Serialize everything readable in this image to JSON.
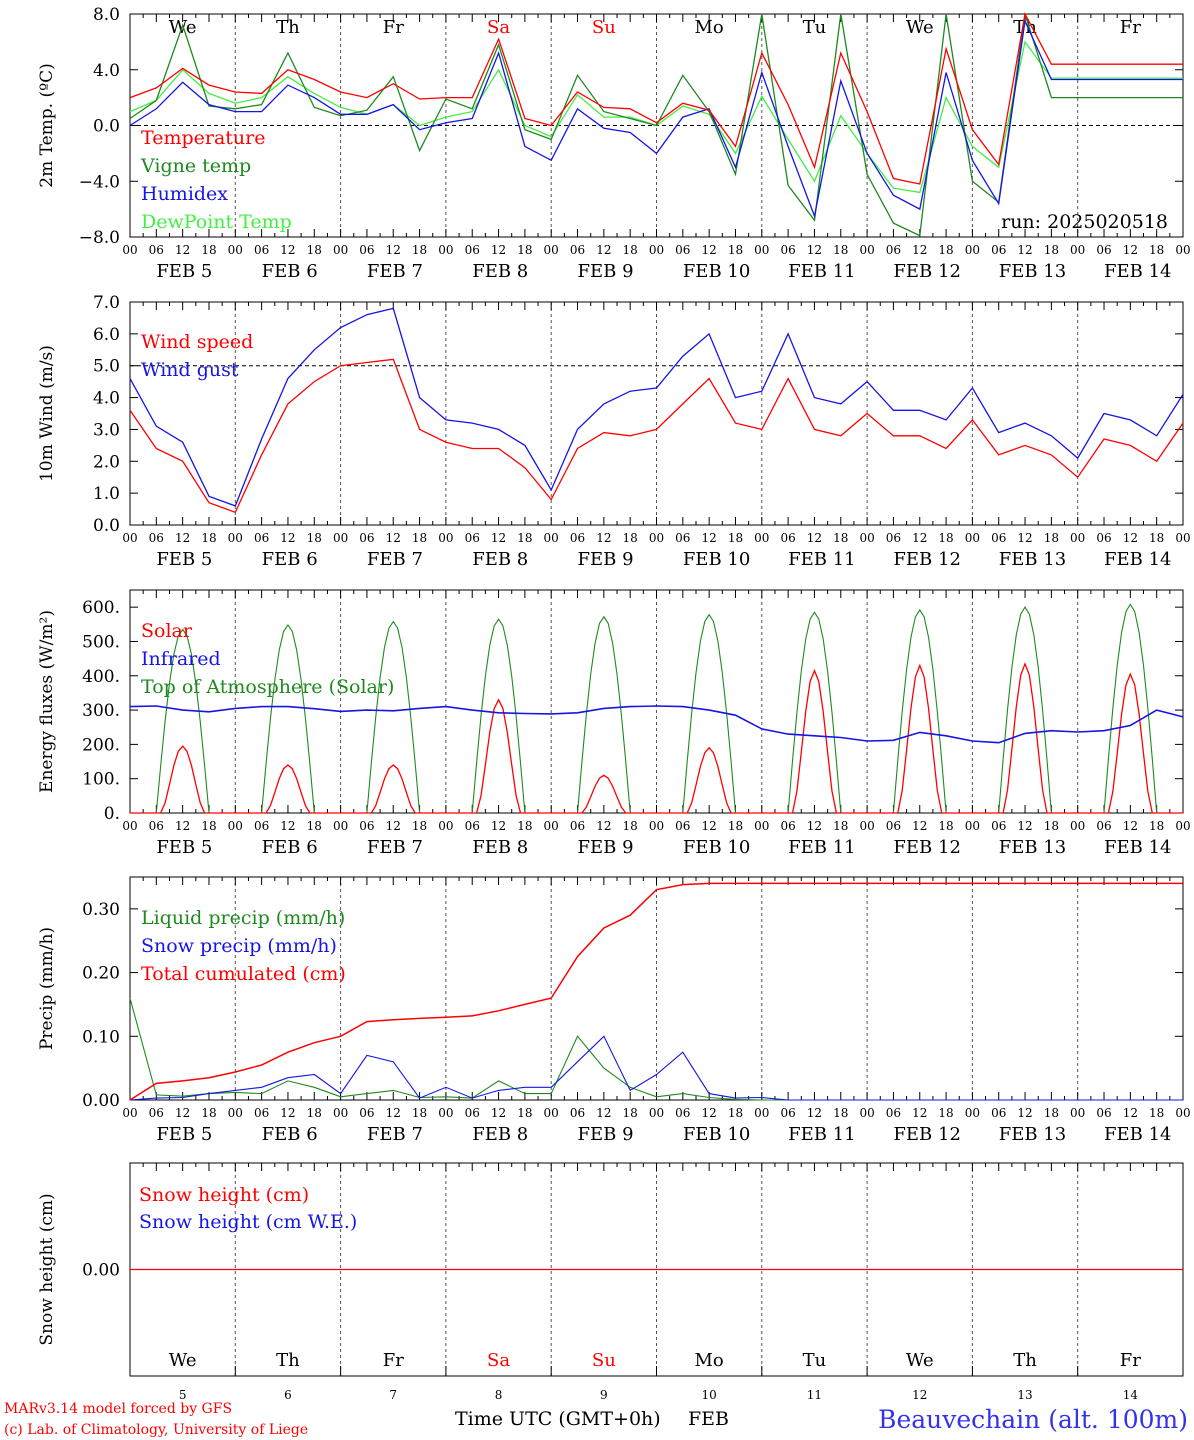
{
  "colors": {
    "red": "#ff0000",
    "green": "#1e8a1e",
    "blue": "#1515e6",
    "lightgreen": "#44ee44",
    "axis": "#000000"
  },
  "days": [
    "We",
    "Th",
    "Fr",
    "Sa",
    "Su",
    "Mo",
    "Tu",
    "We",
    "Th",
    "Fr"
  ],
  "weekend_days": [
    "Sa",
    "Su"
  ],
  "dates": [
    "FEB  5",
    "FEB  6",
    "FEB  7",
    "FEB  8",
    "FEB  9",
    "FEB 10",
    "FEB 11",
    "FEB 12",
    "FEB 13",
    "FEB 14"
  ],
  "hour_ticks": [
    "00",
    "06",
    "12",
    "18"
  ],
  "bottom_dates": [
    "5",
    "6",
    "7",
    "8",
    "9",
    "10",
    "11",
    "12",
    "13",
    "14"
  ],
  "footer": {
    "model": "MARv3.14 model forced by GFS",
    "copyright": "(c) Lab. of Climatology, University of Liege",
    "time_label": "Time UTC (GMT+0h)",
    "month": "FEB",
    "station": "Beauvechain (alt. 100m)"
  },
  "chart_data": [
    {
      "type": "line",
      "ylabel": "2m Temp. (ºC)",
      "ylim": [
        -8,
        8
      ],
      "ytick_labels": [
        "8.0",
        "4.0",
        "0.0",
        "−4.0",
        "−8.0"
      ],
      "ytick_values": [
        8,
        4,
        0,
        -4,
        -8
      ],
      "ref_line": 0,
      "run_label": "run: 2025020518",
      "x_hours": [
        0,
        6,
        12,
        18,
        24,
        30,
        36,
        42,
        48,
        54,
        60,
        66,
        72,
        78,
        84,
        90,
        96,
        102,
        108,
        114,
        120,
        126,
        132,
        138,
        144,
        150,
        156,
        162,
        168,
        174,
        180,
        186,
        192,
        198,
        204,
        210,
        216,
        222,
        228,
        234,
        240
      ],
      "series": [
        {
          "name": "Temperature",
          "color": "red",
          "values": [
            2.0,
            2.7,
            4.1,
            2.9,
            2.4,
            2.3,
            4.0,
            3.3,
            2.4,
            2.0,
            3.0,
            1.9,
            2.0,
            2.0,
            6.2,
            0.5,
            0.0,
            2.4,
            1.3,
            1.2,
            0.2,
            1.6,
            1.1,
            -1.5,
            5.2,
            1.5,
            -3.0,
            5.2,
            1.0,
            -3.8,
            -4.2,
            5.5,
            -0.3,
            -2.8,
            8.0,
            4.4,
            4.4,
            4.4,
            4.4,
            4.4,
            4.4
          ]
        },
        {
          "name": "Vigne temp",
          "color": "green",
          "values": [
            0.5,
            1.8,
            7.2,
            1.4,
            1.2,
            1.5,
            5.2,
            1.3,
            0.7,
            1.1,
            3.5,
            -1.8,
            1.9,
            1.2,
            5.8,
            -0.3,
            -1.0,
            3.6,
            1.0,
            0.5,
            0.0,
            3.6,
            1.0,
            -3.5,
            8.0,
            -4.3,
            -6.8,
            8.0,
            -3.5,
            -7.0,
            -7.9,
            8.0,
            -4.0,
            -5.5,
            8.0,
            2.0,
            2.0,
            2.0,
            2.0,
            2.0,
            2.0
          ]
        },
        {
          "name": "Humidex",
          "color": "blue",
          "values": [
            0.0,
            1.2,
            3.1,
            1.5,
            1.0,
            1.0,
            2.9,
            2.0,
            0.8,
            0.8,
            1.5,
            -0.3,
            0.2,
            0.5,
            5.2,
            -1.5,
            -2.5,
            1.2,
            -0.2,
            -0.5,
            -2.0,
            0.6,
            1.2,
            -3.0,
            3.8,
            -1.5,
            -6.5,
            3.2,
            -2.0,
            -5.0,
            -6.0,
            3.8,
            -2.5,
            -5.6,
            7.5,
            3.3,
            3.3,
            3.3,
            3.3,
            3.3,
            3.3
          ]
        },
        {
          "name": "DewPoint Temp",
          "color": "lightgreen",
          "values": [
            1.0,
            1.8,
            4.0,
            2.3,
            1.6,
            2.0,
            3.5,
            2.3,
            1.3,
            0.8,
            1.5,
            0.0,
            0.6,
            1.0,
            4.0,
            0.0,
            -0.8,
            2.2,
            0.6,
            0.6,
            0.0,
            1.4,
            0.8,
            -2.0,
            2.1,
            -1.0,
            -4.0,
            0.7,
            -2.0,
            -4.5,
            -4.8,
            2.0,
            -1.5,
            -3.0,
            6.0,
            3.4,
            3.4,
            3.4,
            3.4,
            3.4,
            3.4
          ]
        }
      ]
    },
    {
      "type": "line",
      "ylabel": "10m Wind (m/s)",
      "ylim": [
        0,
        7
      ],
      "ytick_labels": [
        "7.0",
        "6.0",
        "5.0",
        "4.0",
        "3.0",
        "2.0",
        "1.0",
        "0.0"
      ],
      "ytick_values": [
        7,
        6,
        5,
        4,
        3,
        2,
        1,
        0
      ],
      "ref_line": 5,
      "x_hours": [
        0,
        6,
        12,
        18,
        24,
        30,
        36,
        42,
        48,
        54,
        60,
        66,
        72,
        78,
        84,
        90,
        96,
        102,
        108,
        114,
        120,
        126,
        132,
        138,
        144,
        150,
        156,
        162,
        168,
        174,
        180,
        186,
        192,
        198,
        204,
        210,
        216,
        222,
        228,
        234,
        240
      ],
      "series": [
        {
          "name": "Wind speed",
          "color": "red",
          "values": [
            3.6,
            2.4,
            2.0,
            0.7,
            0.4,
            2.2,
            3.8,
            4.5,
            5.0,
            5.1,
            5.2,
            3.0,
            2.6,
            2.4,
            2.4,
            1.8,
            0.8,
            2.4,
            2.9,
            2.8,
            3.0,
            3.8,
            4.6,
            3.2,
            3.0,
            4.6,
            3.0,
            2.8,
            3.5,
            2.8,
            2.8,
            2.4,
            3.3,
            2.2,
            2.5,
            2.2,
            1.5,
            2.7,
            2.5,
            2.0,
            3.2
          ]
        },
        {
          "name": "Wind gust",
          "color": "blue",
          "values": [
            4.6,
            3.1,
            2.6,
            0.9,
            0.6,
            2.7,
            4.6,
            5.5,
            6.2,
            6.6,
            6.8,
            4.0,
            3.3,
            3.2,
            3.0,
            2.5,
            1.1,
            3.0,
            3.8,
            4.2,
            4.3,
            5.3,
            6.0,
            4.0,
            4.2,
            6.0,
            4.0,
            3.8,
            4.5,
            3.6,
            3.6,
            3.3,
            4.3,
            2.9,
            3.2,
            2.8,
            2.1,
            3.5,
            3.3,
            2.8,
            4.1
          ]
        }
      ]
    },
    {
      "type": "line",
      "ylabel": "Energy fluxes (W/m²)",
      "ylim": [
        0,
        650
      ],
      "ytick_labels": [
        "600.",
        "500.",
        "400.",
        "300.",
        "200.",
        "100.",
        "0."
      ],
      "ytick_values": [
        600,
        500,
        400,
        300,
        200,
        100,
        0
      ],
      "solar_peaks": [
        195,
        140,
        140,
        330,
        110,
        190,
        415,
        430,
        435,
        405
      ],
      "toa_peaks": [
        535,
        548,
        558,
        565,
        572,
        578,
        585,
        592,
        600,
        608
      ],
      "infrared": [
        310,
        312,
        300,
        295,
        305,
        310,
        310,
        304,
        296,
        300,
        298,
        305,
        310,
        300,
        292,
        290,
        289,
        292,
        305,
        310,
        312,
        310,
        300,
        285,
        245,
        230,
        225,
        220,
        210,
        212,
        235,
        225,
        210,
        205,
        232,
        240,
        236,
        240,
        255,
        300,
        280
      ],
      "series": [
        {
          "name": "Solar",
          "color": "red"
        },
        {
          "name": "Infrared",
          "color": "blue"
        },
        {
          "name": "Top of Atmosphere (Solar)",
          "color": "green"
        }
      ]
    },
    {
      "type": "line",
      "ylabel": "Precip (mm/h)",
      "ylim": [
        0,
        0.35
      ],
      "ytick_labels": [
        "0.30",
        "0.20",
        "0.10",
        "0.00"
      ],
      "ytick_values": [
        0.3,
        0.2,
        0.1,
        0.0
      ],
      "x_hours": [
        0,
        6,
        12,
        18,
        24,
        30,
        36,
        42,
        48,
        54,
        60,
        66,
        72,
        78,
        84,
        90,
        96,
        102,
        108,
        114,
        120,
        126,
        132,
        138,
        144,
        150,
        156,
        162,
        168,
        174,
        180,
        186,
        192,
        198,
        204,
        210,
        216,
        222,
        228,
        234,
        240
      ],
      "total": [
        0.0,
        0.026,
        0.03,
        0.035,
        0.044,
        0.055,
        0.075,
        0.09,
        0.1,
        0.123,
        0.126,
        0.128,
        0.13,
        0.132,
        0.14,
        0.15,
        0.16,
        0.225,
        0.27,
        0.29,
        0.33,
        0.338,
        0.34,
        0.34,
        0.34,
        0.34,
        0.34,
        0.34,
        0.34,
        0.34,
        0.34,
        0.34,
        0.34,
        0.34,
        0.34,
        0.34,
        0.34,
        0.34,
        0.34,
        0.34,
        0.34
      ],
      "liquid": [
        0.16,
        0.008,
        0.006,
        0.01,
        0.012,
        0.01,
        0.03,
        0.02,
        0.005,
        0.01,
        0.015,
        0.004,
        0.005,
        0.003,
        0.03,
        0.01,
        0.01,
        0.1,
        0.05,
        0.02,
        0.005,
        0.01,
        0.004,
        0.001,
        0.0,
        0.0,
        0.0,
        0.0,
        0.0,
        0.0,
        0.0,
        0.0,
        0.0,
        0.0,
        0.0,
        0.0,
        0.0,
        0.0,
        0.0,
        0.0,
        0.0
      ],
      "snow": [
        0.0,
        0.003,
        0.004,
        0.01,
        0.015,
        0.02,
        0.035,
        0.04,
        0.01,
        0.07,
        0.06,
        0.003,
        0.02,
        0.003,
        0.015,
        0.02,
        0.02,
        0.06,
        0.1,
        0.015,
        0.04,
        0.075,
        0.01,
        0.003,
        0.004,
        0.0,
        0.0,
        0.0,
        0.0,
        0.0,
        0.0,
        0.0,
        0.0,
        0.0,
        0.0,
        0.0,
        0.0,
        0.0,
        0.0,
        0.0,
        0.0
      ],
      "series": [
        {
          "name": "Liquid precip (mm/h)",
          "color": "green"
        },
        {
          "name": "Snow precip (mm/h)",
          "color": "blue"
        },
        {
          "name": "Total cumulated (cm)",
          "color": "red"
        }
      ]
    },
    {
      "type": "line",
      "ylabel": "Snow height (cm)",
      "ylim": [
        -1,
        1
      ],
      "ytick_labels": [
        "0.00"
      ],
      "ytick_values": [
        0
      ],
      "value": 0.0,
      "series": [
        {
          "name": "Snow height (cm)",
          "color": "red"
        },
        {
          "name": "Snow height (cm W.E.)",
          "color": "blue"
        }
      ]
    }
  ]
}
